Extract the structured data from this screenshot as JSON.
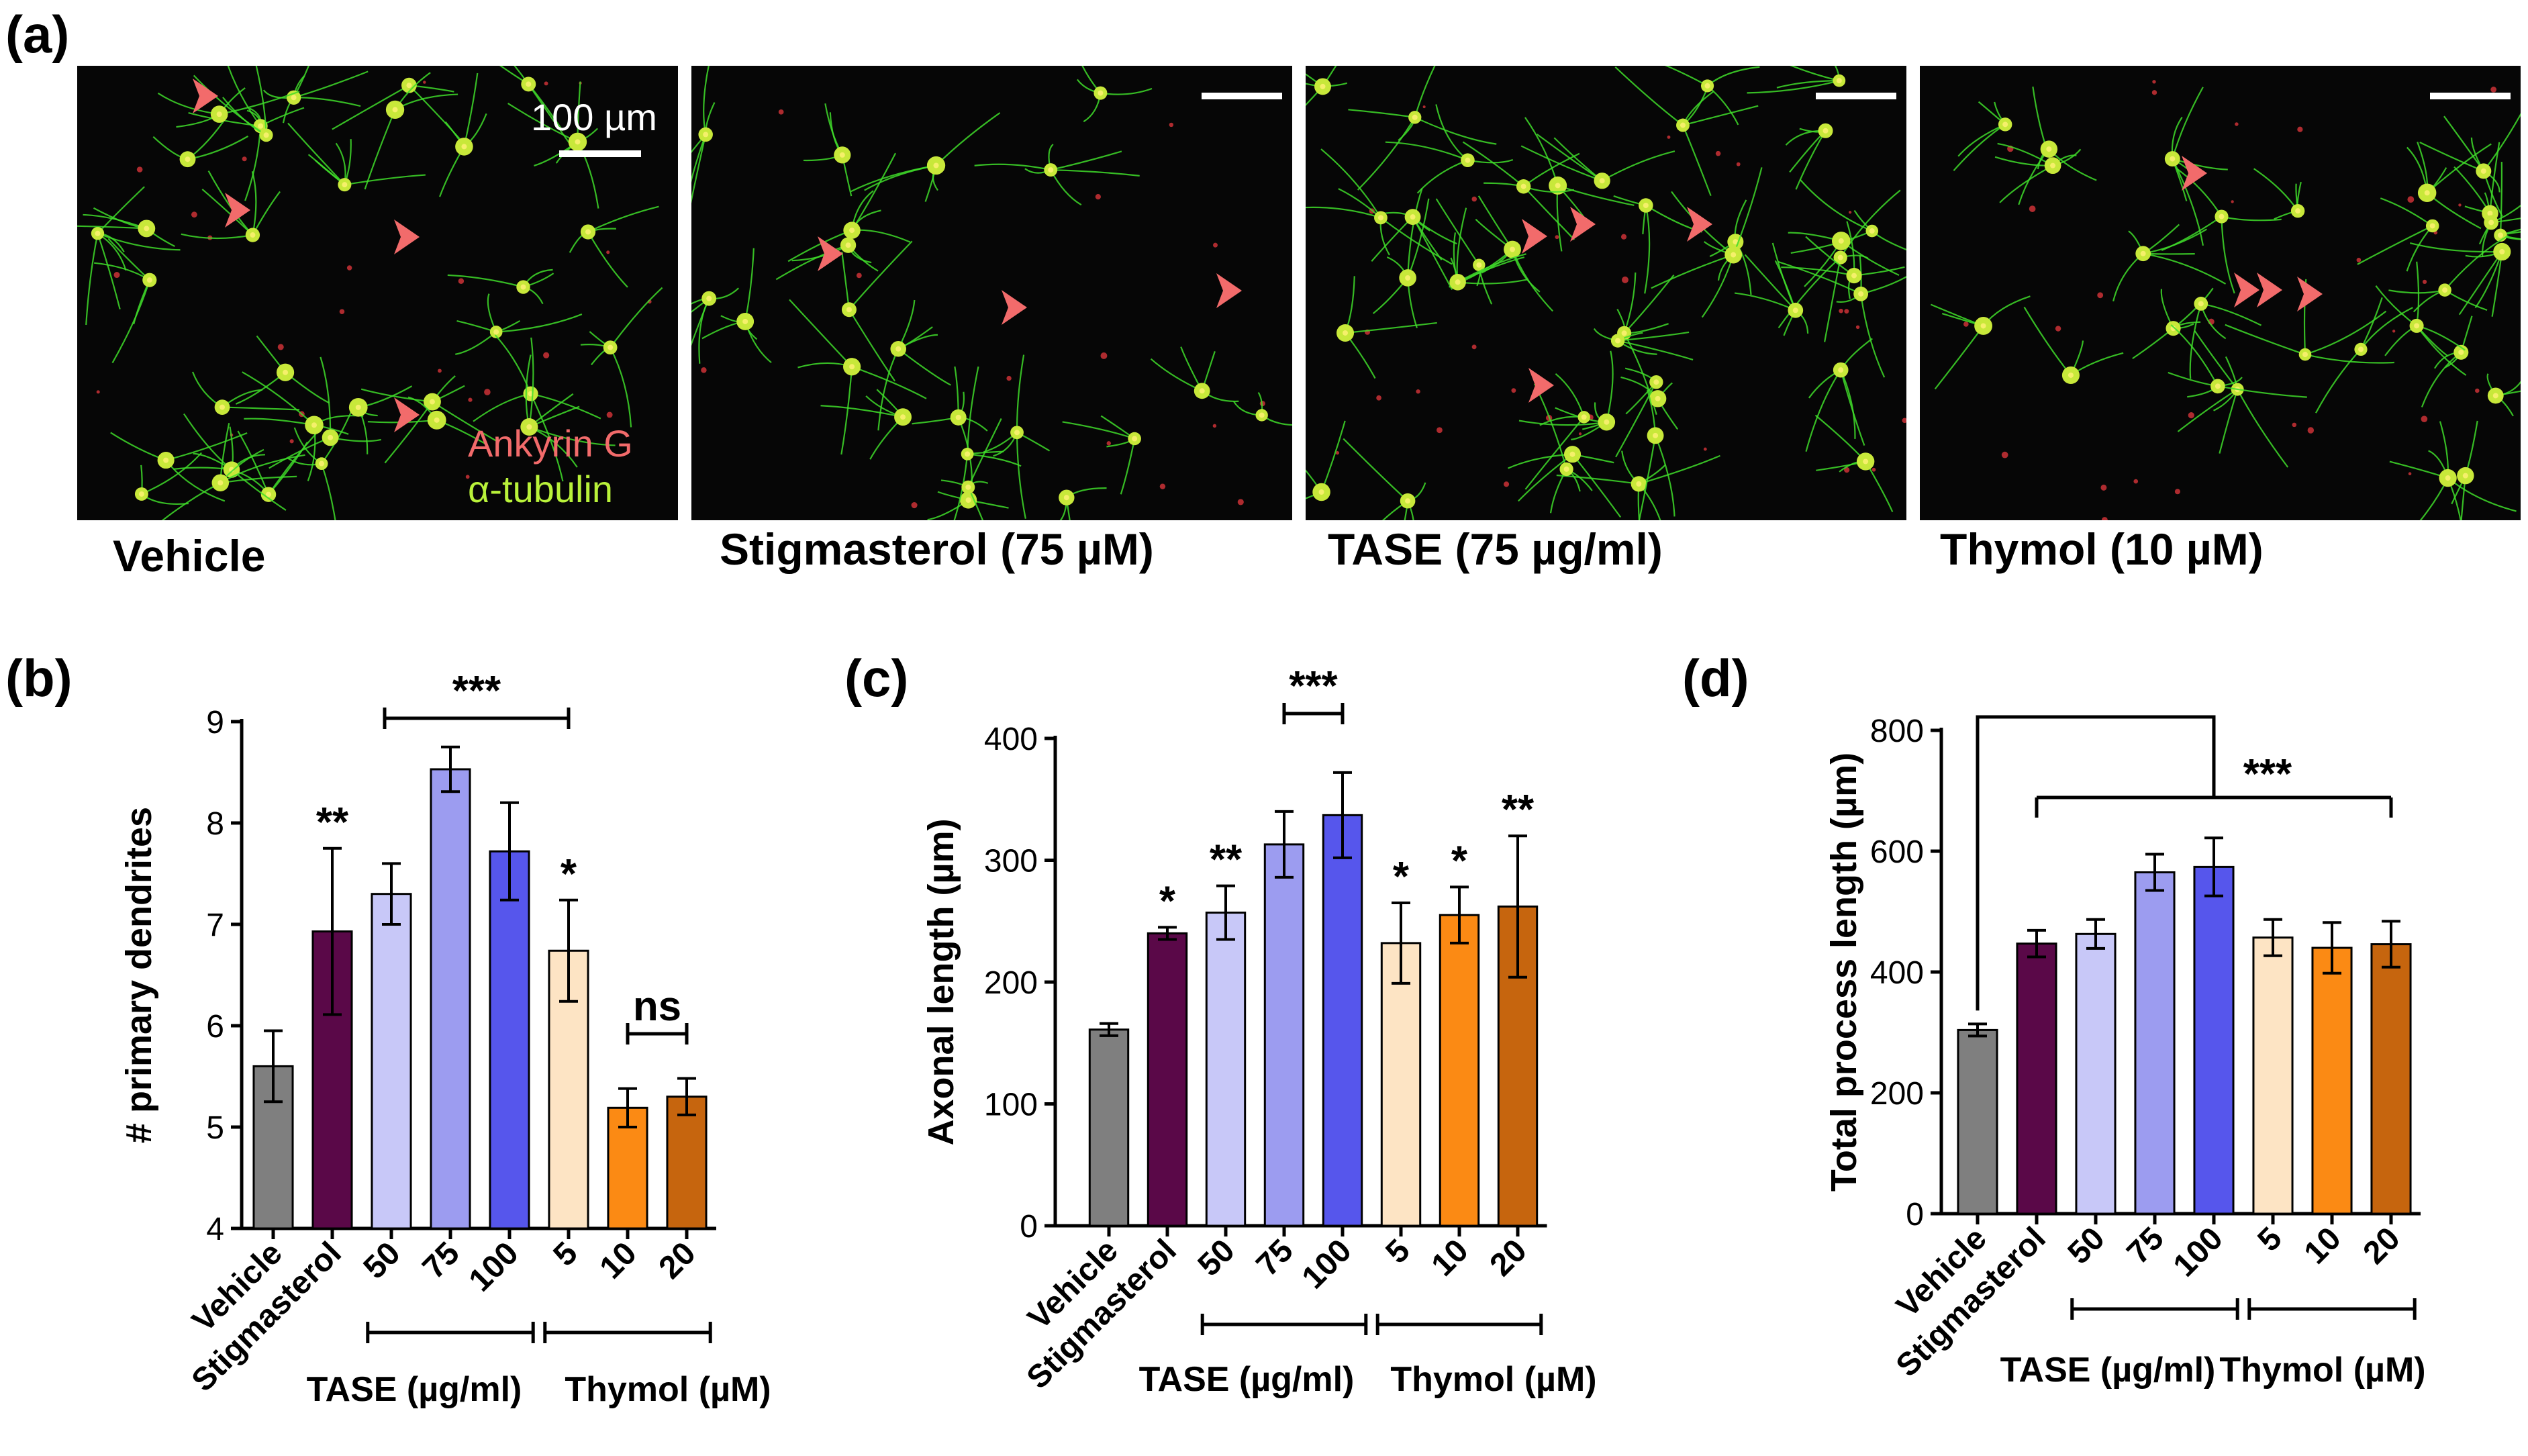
{
  "panel_labels": [
    "(a)",
    "(b)",
    "(c)",
    "(d)"
  ],
  "micrographs": [
    {
      "label": "Vehicle",
      "scale_bar_text": "100 µm",
      "stain_1": "Ankyrin G",
      "stain_2": "α-tubulin"
    },
    {
      "label": "Stigmasterol (75 µM)"
    },
    {
      "label": "TASE (75 µg/ml)"
    },
    {
      "label": "Thymol (10 µM)"
    }
  ],
  "colors": {
    "vehicle": "#7f7f7f",
    "stigmasterol": "#5a0848",
    "tase50": "#c8c8f8",
    "tase75": "#9c9cf0",
    "tase100": "#5656ec",
    "thymol5": "#fde4c4",
    "thymol10": "#fb8a14",
    "thymol20": "#c6650e",
    "arrowhead": "#f26b6b",
    "neurite": "#3fdc2a"
  },
  "chart_data": [
    {
      "type": "bar",
      "panel": "(b)",
      "categories": [
        "Vehicle",
        "Stigmasterol",
        "50",
        "75",
        "100",
        "5",
        "10",
        "20"
      ],
      "values": [
        5.6,
        6.93,
        7.3,
        8.53,
        7.72,
        6.74,
        5.19,
        5.3
      ],
      "errors": [
        0.35,
        0.82,
        0.3,
        0.22,
        0.48,
        0.5,
        0.19,
        0.18
      ],
      "significance": [
        "",
        "**",
        "",
        "",
        "",
        "*",
        "",
        ""
      ],
      "ylabel": "# primary dendrites",
      "ylim": [
        4,
        9
      ],
      "yticks": [
        "4",
        "5",
        "6",
        "7",
        "8",
        "9"
      ],
      "groups": [
        "TASE (µg/ml)",
        "Thymol (µM)"
      ],
      "brackets": [
        {
          "from": 2,
          "to": 5,
          "label": "***"
        },
        {
          "from": 6,
          "to": 7,
          "label": "ns"
        }
      ]
    },
    {
      "type": "bar",
      "panel": "(c)",
      "categories": [
        "Vehicle",
        "Stigmasterol",
        "50",
        "75",
        "100",
        "5",
        "10",
        "20"
      ],
      "values": [
        161,
        240,
        257,
        313,
        337,
        232,
        255,
        262
      ],
      "errors": [
        5,
        5,
        22,
        27,
        35,
        33,
        23,
        58
      ],
      "significance": [
        "",
        "*",
        "**",
        "",
        "",
        "*",
        "*",
        "**"
      ],
      "ylabel": "Axonal length (µm)",
      "ylim": [
        0,
        400
      ],
      "yticks": [
        "0",
        "100",
        "200",
        "300",
        "400"
      ],
      "groups": [
        "TASE (µg/ml)",
        "Thymol (µM)"
      ],
      "brackets": [
        {
          "from": 3,
          "to": 4,
          "label": "***"
        }
      ]
    },
    {
      "type": "bar",
      "panel": "(d)",
      "categories": [
        "Vehicle",
        "Stigmasterol",
        "50",
        "75",
        "100",
        "5",
        "10",
        "20"
      ],
      "values": [
        304,
        447,
        463,
        565,
        574,
        457,
        440,
        446
      ],
      "errors": [
        10,
        22,
        24,
        30,
        48,
        30,
        42,
        38
      ],
      "significance": [
        "",
        "",
        "",
        "",
        "",
        "",
        "",
        ""
      ],
      "ylabel": "Total process length (µm)",
      "ylim": [
        0,
        800
      ],
      "yticks": [
        "0",
        "200",
        "400",
        "600",
        "800"
      ],
      "groups": [
        "TASE (µg/ml)",
        "Thymol (µM)"
      ],
      "brackets": [
        {
          "from": 1,
          "to": 7,
          "label": "***",
          "reference": 0
        }
      ]
    }
  ]
}
